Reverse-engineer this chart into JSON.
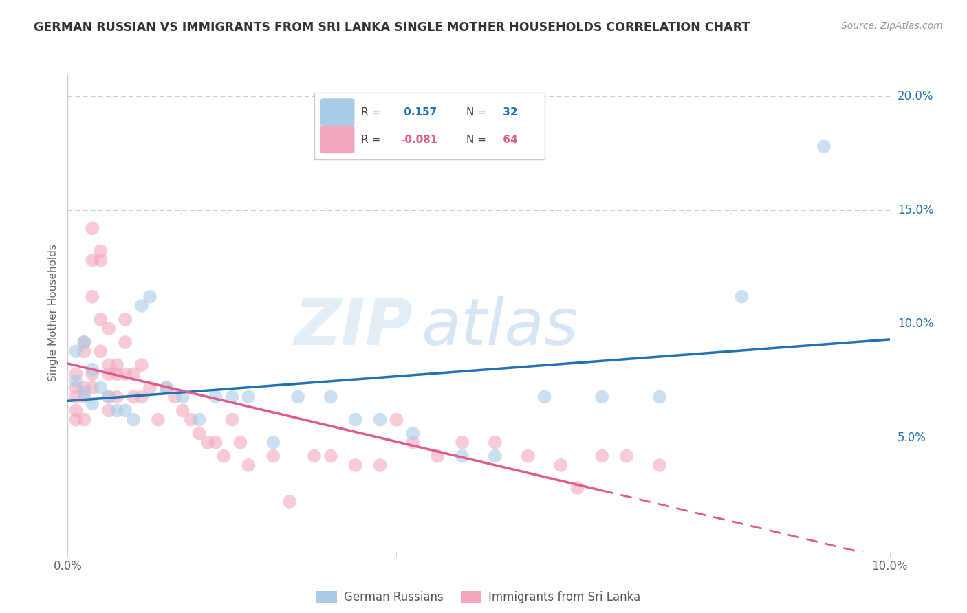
{
  "title": "GERMAN RUSSIAN VS IMMIGRANTS FROM SRI LANKA SINGLE MOTHER HOUSEHOLDS CORRELATION CHART",
  "source": "Source: ZipAtlas.com",
  "ylabel": "Single Mother Households",
  "xlim": [
    0.0,
    0.1
  ],
  "ylim": [
    0.0,
    0.21
  ],
  "yticks": [
    0.05,
    0.1,
    0.15,
    0.2
  ],
  "ytick_labels": [
    "5.0%",
    "10.0%",
    "15.0%",
    "20.0%"
  ],
  "xticks": [
    0.0,
    0.02,
    0.04,
    0.06,
    0.08,
    0.1
  ],
  "xtick_labels": [
    "0.0%",
    "",
    "",
    "",
    "",
    "10.0%"
  ],
  "blue_R": 0.157,
  "blue_N": 32,
  "pink_R": -0.081,
  "pink_N": 64,
  "blue_color": "#a8cce8",
  "pink_color": "#f4a7bc",
  "blue_line_color": "#2171b5",
  "pink_line_color": "#e05a8a",
  "watermark_zip": "ZIP",
  "watermark_atlas": "atlas",
  "blue_points_x": [
    0.001,
    0.001,
    0.002,
    0.002,
    0.003,
    0.003,
    0.004,
    0.005,
    0.006,
    0.007,
    0.008,
    0.009,
    0.01,
    0.012,
    0.014,
    0.016,
    0.018,
    0.02,
    0.022,
    0.025,
    0.028,
    0.032,
    0.035,
    0.038,
    0.042,
    0.048,
    0.052,
    0.058,
    0.065,
    0.072,
    0.082,
    0.092
  ],
  "blue_points_y": [
    0.075,
    0.088,
    0.07,
    0.092,
    0.065,
    0.08,
    0.072,
    0.068,
    0.062,
    0.062,
    0.058,
    0.108,
    0.112,
    0.072,
    0.068,
    0.058,
    0.068,
    0.068,
    0.068,
    0.048,
    0.068,
    0.068,
    0.058,
    0.058,
    0.052,
    0.042,
    0.042,
    0.068,
    0.068,
    0.068,
    0.112,
    0.178
  ],
  "pink_points_x": [
    0.001,
    0.001,
    0.001,
    0.001,
    0.001,
    0.002,
    0.002,
    0.002,
    0.002,
    0.002,
    0.003,
    0.003,
    0.003,
    0.003,
    0.003,
    0.004,
    0.004,
    0.004,
    0.004,
    0.005,
    0.005,
    0.005,
    0.005,
    0.005,
    0.006,
    0.006,
    0.006,
    0.007,
    0.007,
    0.007,
    0.008,
    0.008,
    0.009,
    0.009,
    0.01,
    0.011,
    0.012,
    0.013,
    0.014,
    0.015,
    0.016,
    0.017,
    0.018,
    0.019,
    0.02,
    0.021,
    0.022,
    0.025,
    0.027,
    0.03,
    0.032,
    0.035,
    0.038,
    0.04,
    0.042,
    0.045,
    0.048,
    0.052,
    0.056,
    0.06,
    0.062,
    0.065,
    0.068,
    0.072
  ],
  "pink_points_y": [
    0.068,
    0.078,
    0.072,
    0.062,
    0.058,
    0.092,
    0.088,
    0.068,
    0.058,
    0.072,
    0.142,
    0.128,
    0.112,
    0.072,
    0.078,
    0.132,
    0.128,
    0.102,
    0.088,
    0.098,
    0.082,
    0.078,
    0.068,
    0.062,
    0.082,
    0.078,
    0.068,
    0.102,
    0.092,
    0.078,
    0.078,
    0.068,
    0.082,
    0.068,
    0.072,
    0.058,
    0.072,
    0.068,
    0.062,
    0.058,
    0.052,
    0.048,
    0.048,
    0.042,
    0.058,
    0.048,
    0.038,
    0.042,
    0.022,
    0.042,
    0.042,
    0.038,
    0.038,
    0.058,
    0.048,
    0.042,
    0.048,
    0.048,
    0.042,
    0.038,
    0.028,
    0.042,
    0.042,
    0.038
  ]
}
